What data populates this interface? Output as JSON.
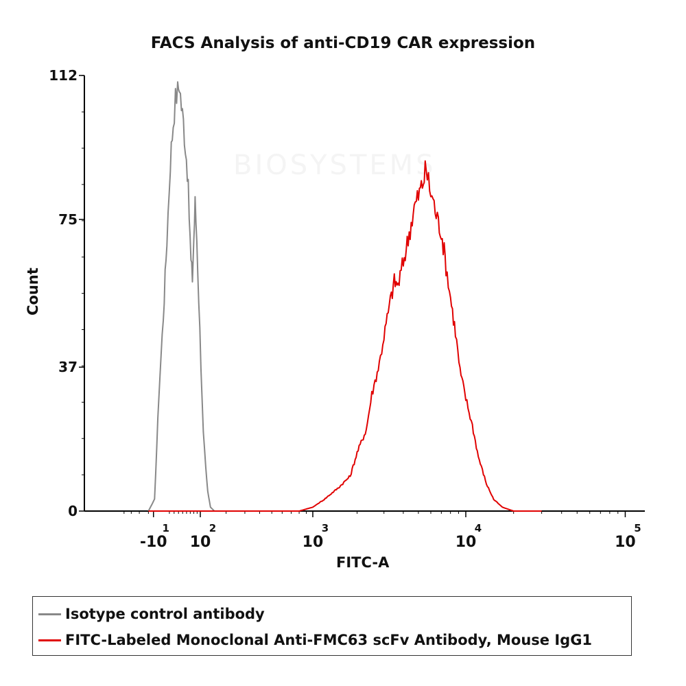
{
  "chart_data": {
    "type": "line",
    "title": "FACS Analysis of anti-CD19 CAR expression",
    "xlabel": "FITC-A",
    "ylabel": "Count",
    "x_scale": "biexponential",
    "x_tick_labels": [
      {
        "base": "-10",
        "exp": "1",
        "value": -10
      },
      {
        "base": "10",
        "exp": "2",
        "value": 100
      },
      {
        "base": "10",
        "exp": "3",
        "value": 1000
      },
      {
        "base": "10",
        "exp": "4",
        "value": 10000
      },
      {
        "base": "10",
        "exp": "5",
        "value": 100000
      }
    ],
    "y_ticks": [
      0,
      37,
      75,
      112
    ],
    "ylim": [
      0,
      112
    ],
    "grid": false,
    "legend_position": "bottom",
    "series": [
      {
        "name": "Isotype control antibody",
        "color": "#888888",
        "points": [
          [
            -20,
            0
          ],
          [
            -8,
            3
          ],
          [
            0,
            30
          ],
          [
            8,
            50
          ],
          [
            15,
            70
          ],
          [
            22,
            90
          ],
          [
            28,
            100
          ],
          [
            33,
            106
          ],
          [
            38,
            108
          ],
          [
            42,
            110
          ],
          [
            47,
            104
          ],
          [
            52,
            100
          ],
          [
            57,
            94
          ],
          [
            62,
            88
          ],
          [
            67,
            76
          ],
          [
            72,
            64
          ],
          [
            76,
            60
          ],
          [
            80,
            70
          ],
          [
            84,
            79
          ],
          [
            89,
            70
          ],
          [
            95,
            55
          ],
          [
            102,
            38
          ],
          [
            110,
            20
          ],
          [
            118,
            11
          ],
          [
            125,
            5
          ],
          [
            135,
            1
          ],
          [
            150,
            0
          ],
          [
            250,
            0
          ],
          [
            600,
            0
          ]
        ]
      },
      {
        "name": "FITC-Labeled Monoclonal Anti-FMC63 scFv Antibody, Mouse IgG1",
        "color": "#e00000",
        "points": [
          [
            -20,
            0
          ],
          [
            150,
            0
          ],
          [
            500,
            0
          ],
          [
            800,
            0
          ],
          [
            1000,
            1
          ],
          [
            1200,
            3
          ],
          [
            1500,
            6
          ],
          [
            1800,
            9
          ],
          [
            2000,
            15
          ],
          [
            2300,
            21
          ],
          [
            2500,
            30
          ],
          [
            2800,
            38
          ],
          [
            3000,
            45
          ],
          [
            3300,
            54
          ],
          [
            3500,
            59
          ],
          [
            3700,
            58
          ],
          [
            4000,
            64
          ],
          [
            4300,
            70
          ],
          [
            4700,
            78
          ],
          [
            5000,
            81
          ],
          [
            5300,
            84
          ],
          [
            5600,
            88
          ],
          [
            5900,
            83
          ],
          [
            6200,
            80
          ],
          [
            6600,
            75
          ],
          [
            7000,
            72
          ],
          [
            7500,
            63
          ],
          [
            8000,
            55
          ],
          [
            8600,
            46
          ],
          [
            9200,
            36
          ],
          [
            10000,
            29
          ],
          [
            11000,
            22
          ],
          [
            12000,
            14
          ],
          [
            13500,
            7
          ],
          [
            15000,
            3
          ],
          [
            17000,
            1
          ],
          [
            20000,
            0
          ],
          [
            30000,
            0
          ]
        ]
      }
    ]
  }
}
